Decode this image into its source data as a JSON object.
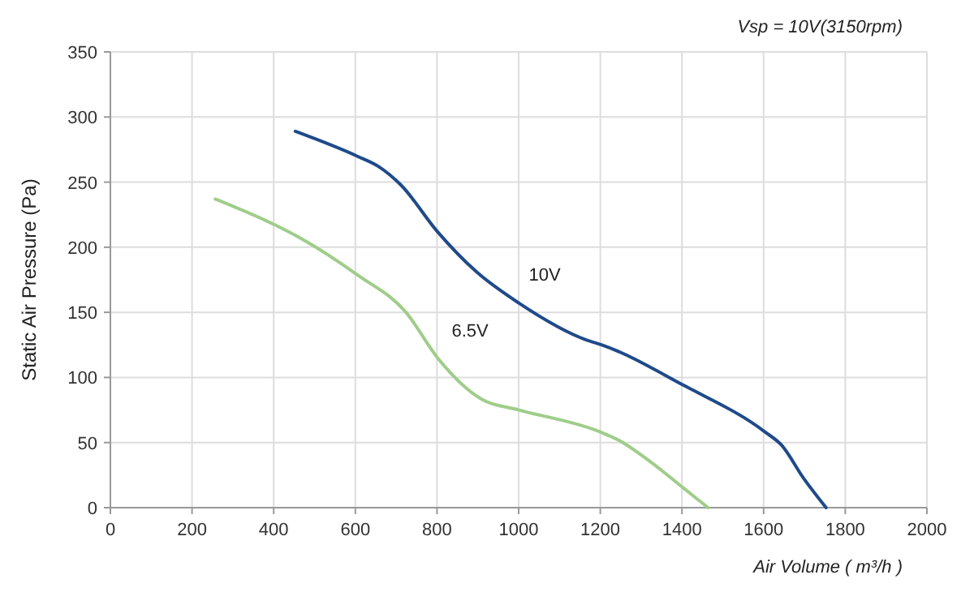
{
  "chart_data": {
    "type": "line",
    "title": "Vsp = 10V(3150rpm)",
    "xlabel": "Air Volume ( m³/h )",
    "ylabel": "Static Air Pressure  (Pa)",
    "xlim": [
      0,
      2000
    ],
    "xticks": [
      0,
      200,
      400,
      600,
      800,
      1000,
      1200,
      1400,
      1600,
      1800,
      2000
    ],
    "ylim": [
      0,
      350
    ],
    "yticks": [
      0,
      50,
      100,
      150,
      200,
      250,
      300,
      350
    ],
    "grid": true,
    "marker": "none",
    "line_style": "solid",
    "series": [
      {
        "name": "10V",
        "color": "#1f4a8a",
        "x": [
          453,
          604,
          657,
          711,
          801,
          897,
          1001,
          1164,
          1204,
          1404,
          1604,
          1644,
          1697,
          1753
        ],
        "values": [
          289,
          270,
          262,
          248,
          212,
          181,
          157,
          129,
          125,
          94,
          58,
          48,
          23,
          0
        ]
      },
      {
        "name": "6.5V",
        "color": "#9fcd8a",
        "x": [
          257,
          404,
          471,
          604,
          724,
          804,
          911,
          1001,
          1201,
          1244,
          1324,
          1404,
          1464
        ],
        "values": [
          237,
          217,
          206,
          179,
          150,
          114,
          83,
          75,
          58,
          52,
          35,
          15,
          0
        ]
      }
    ]
  }
}
